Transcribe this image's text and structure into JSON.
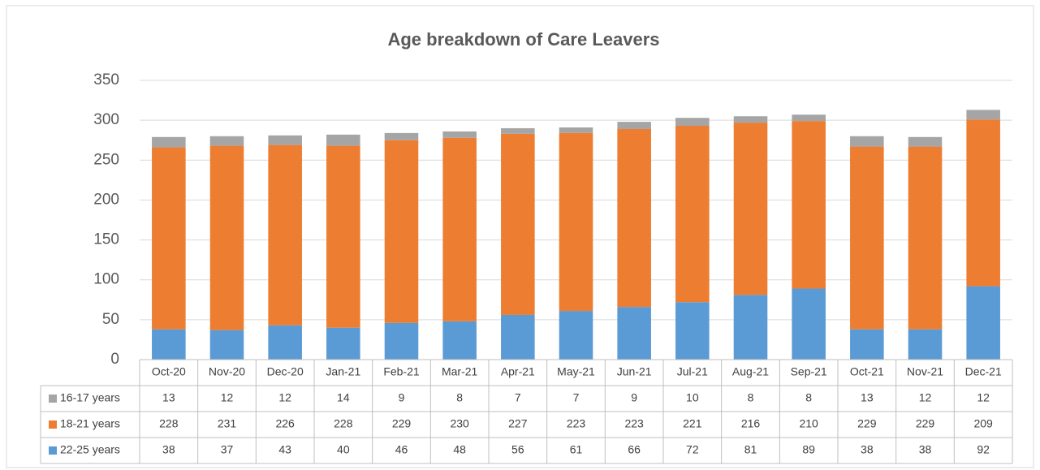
{
  "chart_data": {
    "type": "bar",
    "stacked": true,
    "title": "Age breakdown of Care Leavers",
    "categories": [
      "Oct-20",
      "Nov-20",
      "Dec-20",
      "Jan-21",
      "Feb-21",
      "Mar-21",
      "Apr-21",
      "May-21",
      "Jun-21",
      "Jul-21",
      "Aug-21",
      "Sep-21",
      "Oct-21",
      "Nov-21",
      "Dec-21"
    ],
    "series": [
      {
        "name": "16-17 years",
        "color": "#a5a5a5",
        "values": [
          13,
          12,
          12,
          14,
          9,
          8,
          7,
          7,
          9,
          10,
          8,
          8,
          13,
          12,
          12
        ]
      },
      {
        "name": "18-21 years",
        "color": "#ed7d31",
        "values": [
          228,
          231,
          226,
          228,
          229,
          230,
          227,
          223,
          223,
          221,
          216,
          210,
          229,
          229,
          209
        ]
      },
      {
        "name": "22-25 years",
        "color": "#5b9bd5",
        "values": [
          38,
          37,
          43,
          40,
          46,
          48,
          56,
          61,
          66,
          72,
          81,
          89,
          38,
          38,
          92
        ]
      }
    ],
    "ylim": [
      0,
      350
    ],
    "yticks": [
      0,
      50,
      100,
      150,
      200,
      250,
      300,
      350
    ],
    "grid": true,
    "data_table": true
  }
}
